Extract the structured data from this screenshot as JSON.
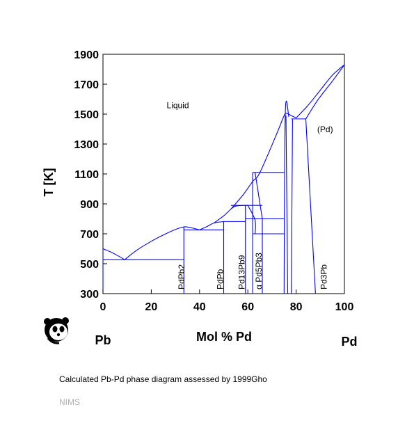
{
  "chart_data": {
    "type": "phase-diagram",
    "xlabel": "Mol % Pd",
    "ylabel": "T [K]",
    "xlim": [
      0,
      100
    ],
    "ylim": [
      300,
      1900
    ],
    "xticks": [
      0,
      20,
      40,
      60,
      80,
      100
    ],
    "yticks": [
      300,
      500,
      700,
      900,
      1100,
      1300,
      1500,
      1700,
      1900
    ],
    "element_left": "Pb",
    "element_right": "Pd",
    "line_color": "#0000ff",
    "region_labels": [
      {
        "text": "Liquid",
        "x": 31,
        "y": 1540
      },
      {
        "text": "(Pd)",
        "x": 92,
        "y": 1380
      }
    ],
    "phase_labels": [
      {
        "text": "PdPb2",
        "x": 32.5
      },
      {
        "text": "PdPb",
        "x": 48.5
      },
      {
        "text": "Pd13Pb9",
        "x": 57.5
      },
      {
        "text": "α Pd5Pb3",
        "x": 64.5
      },
      {
        "text": "Pd3Pb",
        "x": 91.5
      }
    ],
    "curves": [
      [
        [
          0,
          600
        ],
        [
          3,
          580
        ],
        [
          6,
          555
        ],
        [
          9,
          527
        ]
      ],
      [
        [
          9,
          527
        ],
        [
          14,
          590
        ],
        [
          20,
          650
        ],
        [
          26,
          700
        ],
        [
          31,
          735
        ],
        [
          33.5,
          746
        ],
        [
          35,
          745
        ],
        [
          38,
          735
        ],
        [
          40,
          726
        ]
      ],
      [
        [
          40,
          726
        ],
        [
          43,
          748
        ],
        [
          46,
          772
        ],
        [
          50,
          782
        ]
      ],
      [
        [
          46,
          772
        ],
        [
          50,
          820
        ],
        [
          53,
          865
        ],
        [
          55,
          885
        ],
        [
          60,
          890
        ]
      ],
      [
        [
          53,
          865
        ],
        [
          58,
          960
        ],
        [
          62,
          1050
        ],
        [
          65,
          1110
        ],
        [
          72,
          1370
        ],
        [
          75,
          1490
        ],
        [
          76,
          1505
        ],
        [
          78,
          1490
        ],
        [
          80,
          1475
        ]
      ],
      [
        [
          80,
          1475
        ],
        [
          85,
          1560
        ],
        [
          90,
          1660
        ],
        [
          95,
          1760
        ],
        [
          100,
          1830
        ]
      ],
      [
        [
          84,
          1468
        ],
        [
          89,
          1595
        ],
        [
          95,
          1720
        ],
        [
          100,
          1830
        ]
      ],
      [
        [
          63,
          1110
        ],
        [
          66,
          800
        ]
      ],
      [
        [
          60,
          890
        ],
        [
          63,
          790
        ],
        [
          63,
          700
        ]
      ],
      [
        [
          75,
          300
        ],
        [
          75.5,
          1505
        ],
        [
          77,
          1480
        ]
      ],
      [
        [
          76.5,
          300
        ],
        [
          75.8,
          1490
        ]
      ],
      [
        [
          78,
          300
        ],
        [
          78.5,
          1465
        ]
      ],
      [
        [
          84,
          1468
        ],
        [
          88,
          300
        ]
      ]
    ],
    "segments": [
      [
        [
          0,
          300
        ],
        [
          0,
          600
        ]
      ],
      [
        [
          0,
          527
        ],
        [
          33.5,
          527
        ]
      ],
      [
        [
          33.5,
          300
        ],
        [
          33.5,
          746
        ]
      ],
      [
        [
          33.5,
          726
        ],
        [
          50,
          726
        ]
      ],
      [
        [
          50,
          300
        ],
        [
          50,
          782
        ]
      ],
      [
        [
          50,
          782
        ],
        [
          59,
          782
        ]
      ],
      [
        [
          59,
          300
        ],
        [
          59,
          890
        ]
      ],
      [
        [
          53,
          890
        ],
        [
          66,
          890
        ]
      ],
      [
        [
          62,
          300
        ],
        [
          62,
          1110
        ]
      ],
      [
        [
          62,
          1110
        ],
        [
          75,
          1110
        ]
      ],
      [
        [
          59,
          800
        ],
        [
          75,
          800
        ]
      ],
      [
        [
          62,
          700
        ],
        [
          75,
          700
        ]
      ],
      [
        [
          66,
          300
        ],
        [
          66,
          800
        ]
      ],
      [
        [
          78,
          1468
        ],
        [
          84,
          1468
        ]
      ]
    ]
  },
  "caption": "Calculated Pb-Pd phase diagram assessed by 1999Gho",
  "footer": "NIMS",
  "logo": "panda-logo"
}
